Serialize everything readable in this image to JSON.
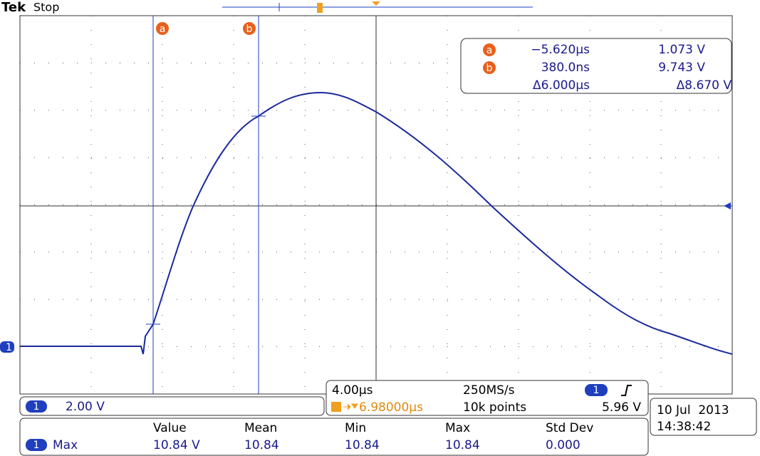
{
  "header": {
    "brand": "Tek",
    "status": "Stop"
  },
  "cursors": {
    "a": {
      "label": "a",
      "time": "−5.620µs",
      "volts": "1.073 V"
    },
    "b": {
      "label": "b",
      "time": "380.0ns",
      "volts": "9.743 V"
    },
    "delta": {
      "time": "Δ6.000µs",
      "volts": "Δ8.670 V"
    }
  },
  "channel": {
    "badge": "1",
    "scale": "2.00 V"
  },
  "acquisition": {
    "timebase": "4.00µs",
    "sample_rate": "250MS/s",
    "channel_badge": "1",
    "trigger_delay": "6.98000µs",
    "record_length": "10k points",
    "trigger_level": "5.96 V"
  },
  "datetime": {
    "date": "10 Jul  2013",
    "time": "14:38:42"
  },
  "measurements": {
    "headers": [
      "Value",
      "Mean",
      "Min",
      "Max",
      "Std Dev"
    ],
    "rows": [
      {
        "badge": "1",
        "name": "Max",
        "cells": [
          "10.84 V",
          "10.84",
          "10.84",
          "10.84",
          "0.000"
        ]
      }
    ]
  }
}
